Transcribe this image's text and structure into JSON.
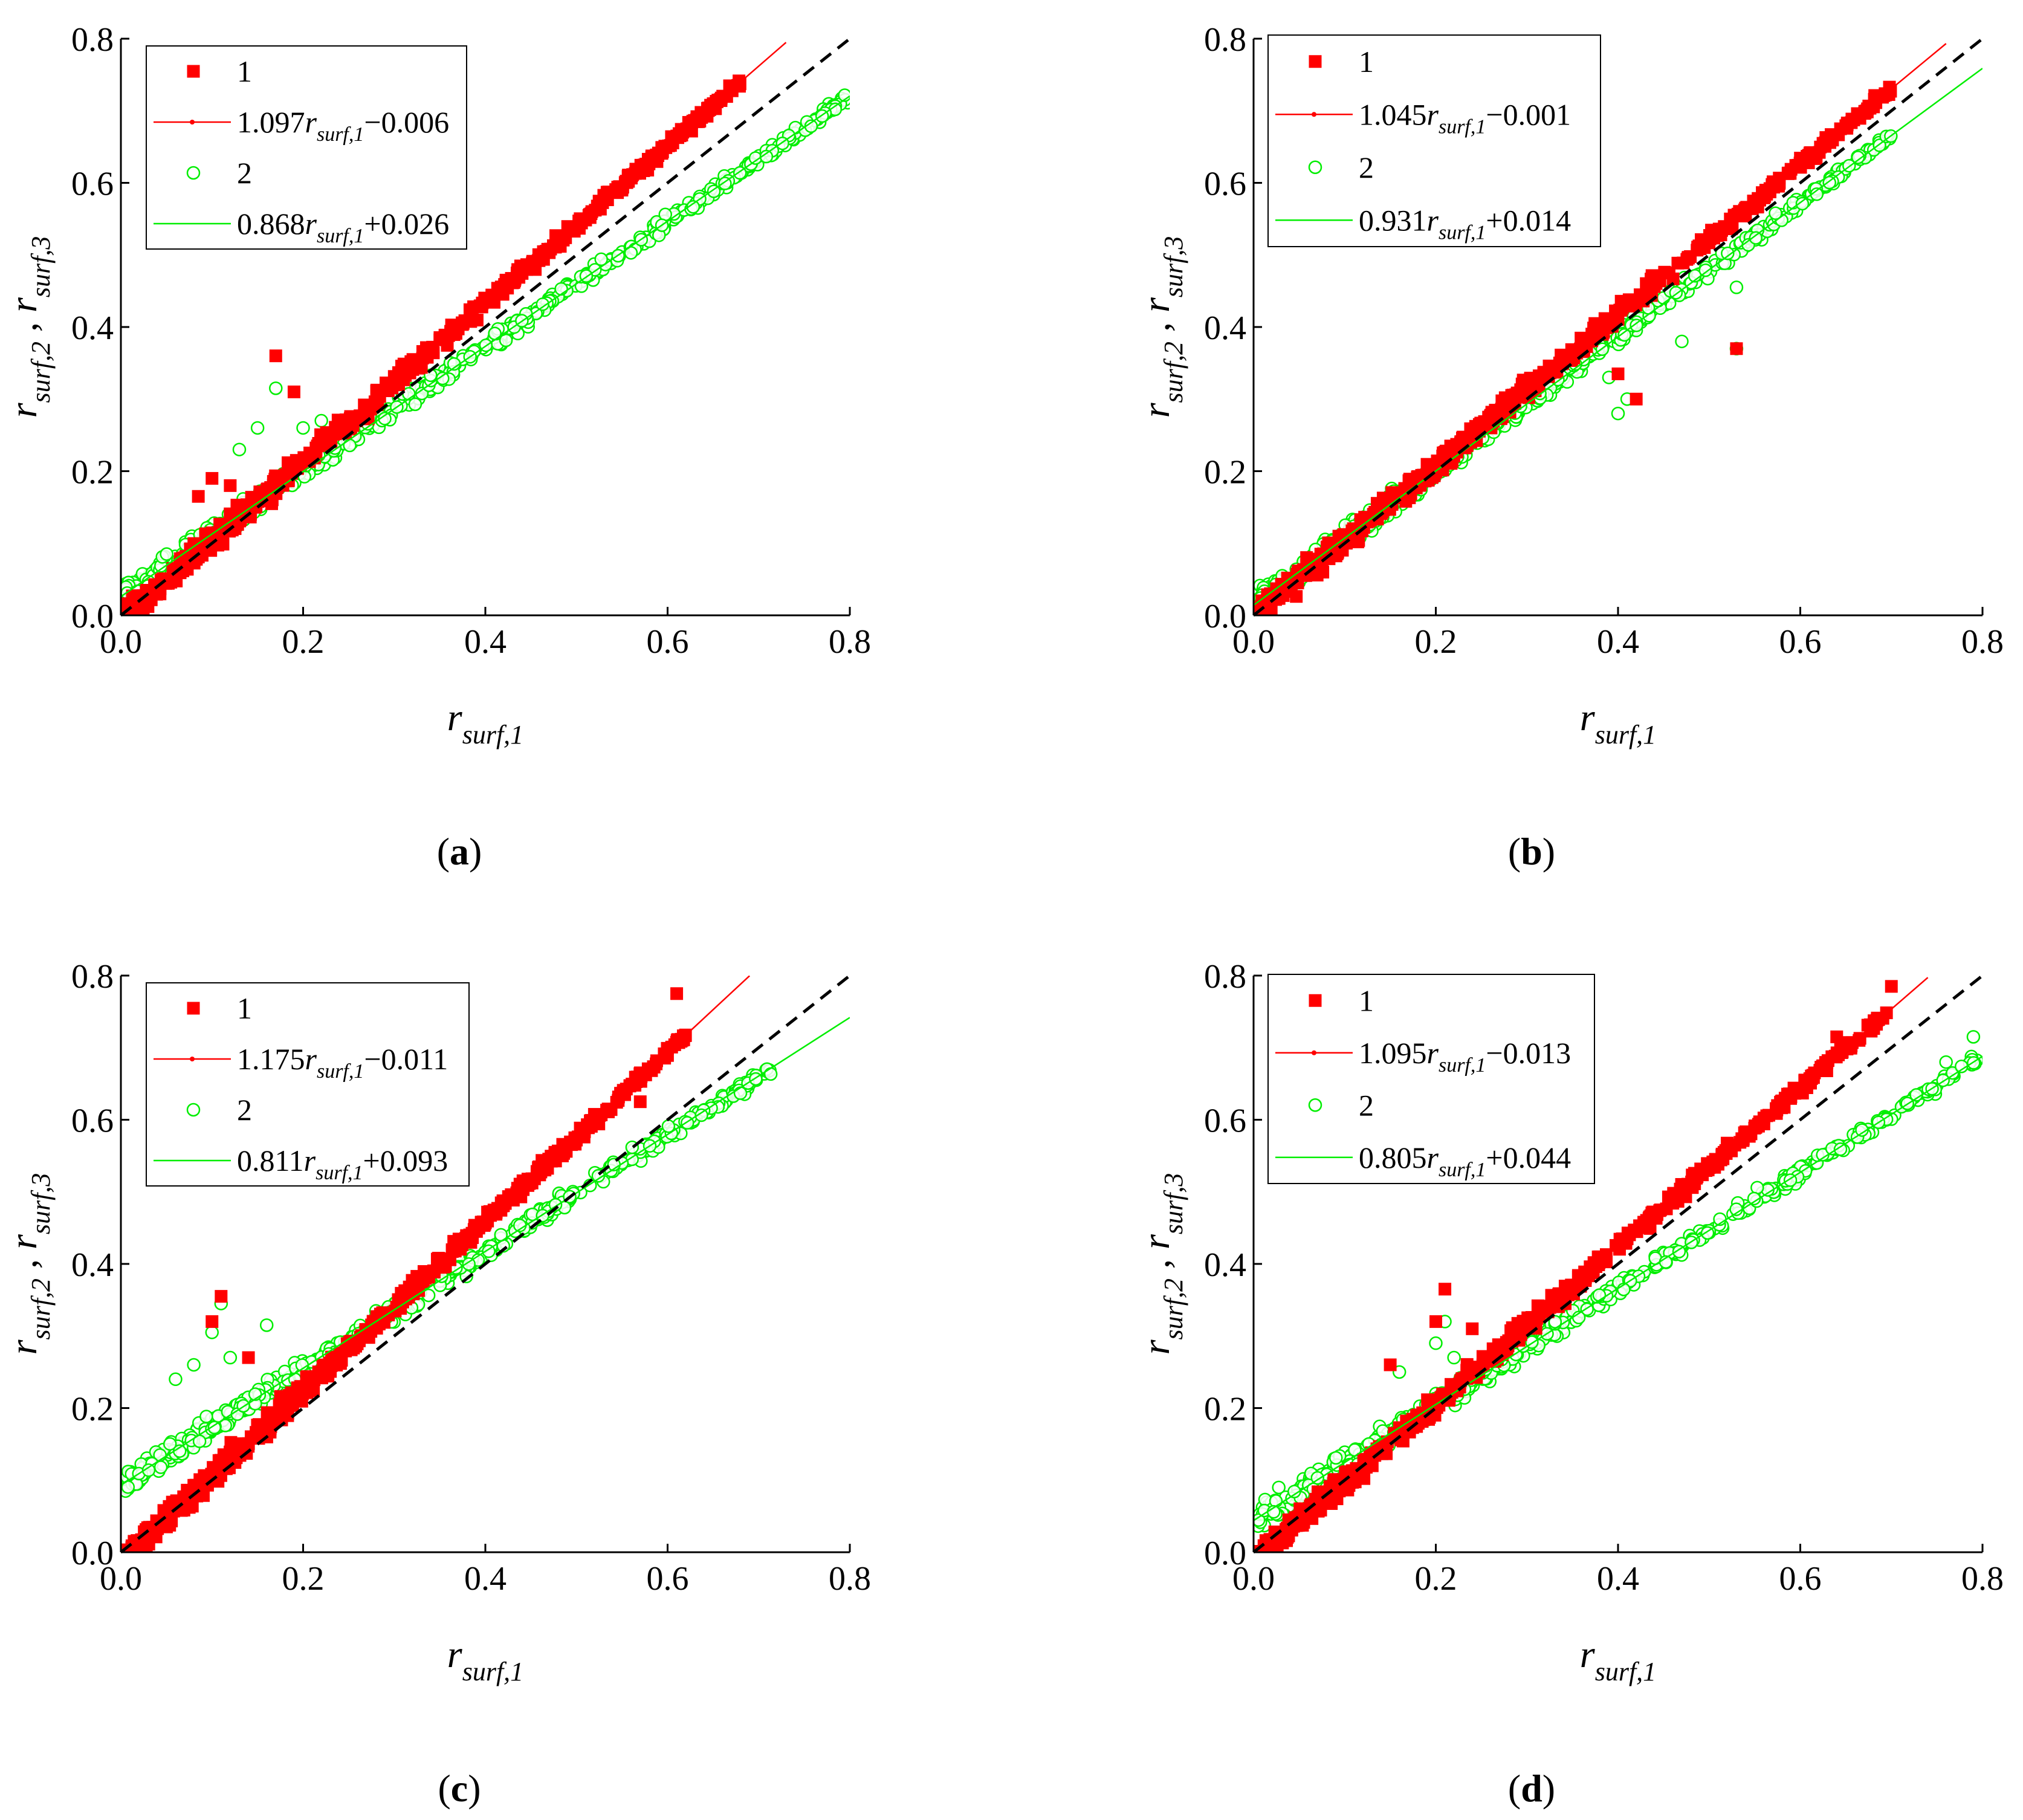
{
  "figure": {
    "caption_open": "(",
    "caption_close": ")"
  },
  "chart_data": [
    {
      "type": "scatter",
      "panel": "a",
      "xlabel": {
        "base": "r",
        "sub": "surf,1"
      },
      "ylabel": {
        "base1": "r",
        "sub1": "surf,2",
        "sep": " , ",
        "base2": "r",
        "sub2": "surf,3"
      },
      "xlim": [
        0,
        0.8
      ],
      "ylim": [
        0,
        0.8
      ],
      "xticks": [
        "0.0",
        "0.2",
        "0.4",
        "0.6",
        "0.8"
      ],
      "yticks": [
        "0.0",
        "0.2",
        "0.4",
        "0.6",
        "0.8"
      ],
      "identity_line": true,
      "series": [
        {
          "name": "1",
          "marker": "square",
          "color": "#ff0000",
          "fit": {
            "slope": 1.097,
            "intercept": -0.006,
            "label_pre": "1.097",
            "label_var": "r",
            "label_sub": "surf,1",
            "label_post": "−0.006",
            "x_end": 0.73
          },
          "x_max": 0.68,
          "outliers": [
            [
              0.17,
              0.36
            ],
            [
              0.19,
              0.31
            ],
            [
              0.085,
              0.165
            ],
            [
              0.12,
              0.18
            ],
            [
              0.1,
              0.19
            ]
          ]
        },
        {
          "name": "2",
          "marker": "circle",
          "color": "#00ee00",
          "fit": {
            "slope": 0.868,
            "intercept": 0.026,
            "label_pre": "0.868",
            "label_var": "r",
            "label_sub": "surf,1",
            "label_post": "+0.026",
            "x_end": 0.8
          },
          "x_max": 0.8,
          "outliers": [
            [
              0.17,
              0.315
            ],
            [
              0.15,
              0.26
            ],
            [
              0.2,
              0.26
            ],
            [
              0.13,
              0.23
            ],
            [
              0.22,
              0.27
            ]
          ]
        }
      ]
    },
    {
      "type": "scatter",
      "panel": "b",
      "xlabel": {
        "base": "r",
        "sub": "surf,1"
      },
      "ylabel": {
        "base1": "r",
        "sub1": "surf,2",
        "sep": " , ",
        "base2": "r",
        "sub2": "surf,3"
      },
      "xlim": [
        0,
        0.8
      ],
      "ylim": [
        0,
        0.8
      ],
      "xticks": [
        "0.0",
        "0.2",
        "0.4",
        "0.6",
        "0.8"
      ],
      "yticks": [
        "0.0",
        "0.2",
        "0.4",
        "0.6",
        "0.8"
      ],
      "identity_line": true,
      "series": [
        {
          "name": "1",
          "marker": "square",
          "color": "#ff0000",
          "fit": {
            "slope": 1.045,
            "intercept": -0.001,
            "label_pre": "1.045",
            "label_var": "r",
            "label_sub": "surf,1",
            "label_post": "−0.001",
            "x_end": 0.76
          },
          "x_max": 0.7,
          "outliers": [
            [
              0.4,
              0.335
            ],
            [
              0.42,
              0.3
            ],
            [
              0.53,
              0.37
            ]
          ]
        },
        {
          "name": "2",
          "marker": "circle",
          "color": "#00ee00",
          "fit": {
            "slope": 0.931,
            "intercept": 0.014,
            "label_pre": "0.931",
            "label_var": "r",
            "label_sub": "surf,1",
            "label_post": "+0.014",
            "x_end": 0.8
          },
          "x_max": 0.7,
          "outliers": [
            [
              0.4,
              0.28
            ],
            [
              0.41,
              0.3
            ],
            [
              0.53,
              0.37
            ],
            [
              0.53,
              0.455
            ],
            [
              0.47,
              0.38
            ],
            [
              0.39,
              0.33
            ]
          ]
        }
      ]
    },
    {
      "type": "scatter",
      "panel": "c",
      "xlabel": {
        "base": "r",
        "sub": "surf,1"
      },
      "ylabel": {
        "base1": "r",
        "sub1": "surf,2",
        "sep": " , ",
        "base2": "r",
        "sub2": "surf,3"
      },
      "xlim": [
        0,
        0.8
      ],
      "ylim": [
        0,
        0.8
      ],
      "xticks": [
        "0.0",
        "0.2",
        "0.4",
        "0.6",
        "0.8"
      ],
      "yticks": [
        "0.0",
        "0.2",
        "0.4",
        "0.6",
        "0.8"
      ],
      "identity_line": true,
      "series": [
        {
          "name": "1",
          "marker": "square",
          "color": "#ff0000",
          "fit": {
            "slope": 1.175,
            "intercept": -0.011,
            "label_pre": "1.175",
            "label_var": "r",
            "label_sub": "surf,1",
            "label_post": "−0.011",
            "x_end": 0.69
          },
          "x_max": 0.62,
          "outliers": [
            [
              0.11,
              0.355
            ],
            [
              0.1,
              0.32
            ],
            [
              0.14,
              0.27
            ],
            [
              0.61,
              0.775
            ],
            [
              0.57,
              0.625
            ]
          ]
        },
        {
          "name": "2",
          "marker": "circle",
          "color": "#00ee00",
          "fit": {
            "slope": 0.811,
            "intercept": 0.093,
            "label_pre": "0.811",
            "label_var": "r",
            "label_sub": "surf,1",
            "label_post": "+0.093",
            "x_end": 0.8
          },
          "x_max": 0.72,
          "outliers": [
            [
              0.11,
              0.345
            ],
            [
              0.1,
              0.305
            ],
            [
              0.16,
              0.315
            ],
            [
              0.08,
              0.26
            ],
            [
              0.06,
              0.24
            ],
            [
              0.12,
              0.27
            ]
          ]
        }
      ]
    },
    {
      "type": "scatter",
      "panel": "d",
      "xlabel": {
        "base": "r",
        "sub": "surf,1"
      },
      "ylabel": {
        "base1": "r",
        "sub1": "surf,2",
        "sep": " , ",
        "base2": "r",
        "sub2": "surf,3"
      },
      "xlim": [
        0,
        0.8
      ],
      "ylim": [
        0,
        0.8
      ],
      "xticks": [
        "0.0",
        "0.2",
        "0.4",
        "0.6",
        "0.8"
      ],
      "yticks": [
        "0.0",
        "0.2",
        "0.4",
        "0.6",
        "0.8"
      ],
      "identity_line": true,
      "series": [
        {
          "name": "1",
          "marker": "square",
          "color": "#ff0000",
          "fit": {
            "slope": 1.095,
            "intercept": -0.013,
            "label_pre": "1.095",
            "label_var": "r",
            "label_sub": "surf,1",
            "label_post": "−0.013",
            "x_end": 0.74
          },
          "x_max": 0.7,
          "outliers": [
            [
              0.21,
              0.365
            ],
            [
              0.2,
              0.32
            ],
            [
              0.24,
              0.31
            ],
            [
              0.15,
              0.26
            ],
            [
              0.64,
              0.715
            ],
            [
              0.7,
              0.785
            ]
          ]
        },
        {
          "name": "2",
          "marker": "circle",
          "color": "#00ee00",
          "fit": {
            "slope": 0.805,
            "intercept": 0.044,
            "label_pre": "0.805",
            "label_var": "r",
            "label_sub": "surf,1",
            "label_post": "+0.044",
            "x_end": 0.8
          },
          "x_max": 0.8,
          "outliers": [
            [
              0.21,
              0.32
            ],
            [
              0.2,
              0.29
            ],
            [
              0.22,
              0.27
            ],
            [
              0.16,
              0.25
            ],
            [
              0.76,
              0.68
            ],
            [
              0.79,
              0.715
            ]
          ]
        }
      ]
    }
  ]
}
